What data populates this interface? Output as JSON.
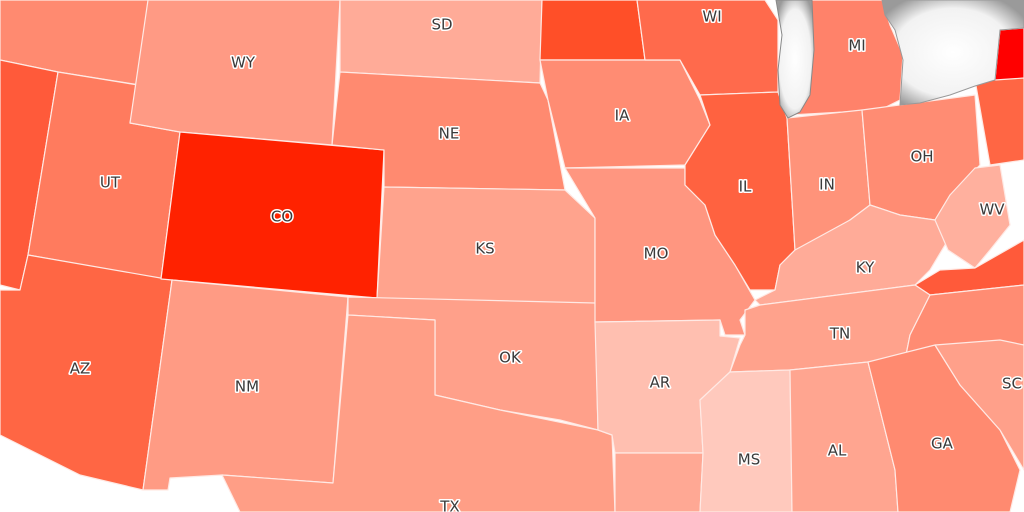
{
  "map": {
    "type": "choropleth",
    "region": "United States (central)",
    "background": "#ffffff",
    "states": [
      {
        "code": "ID",
        "label": "",
        "color": "#ff8a70"
      },
      {
        "code": "NV",
        "label": "",
        "color": "#ff5a3a"
      },
      {
        "code": "UT",
        "label": "UT",
        "color": "#ff7b5e"
      },
      {
        "code": "AZ",
        "label": "AZ",
        "color": "#ff6644"
      },
      {
        "code": "WY",
        "label": "WY",
        "color": "#ff9a84"
      },
      {
        "code": "CO",
        "label": "CO",
        "color": "#ff2200"
      },
      {
        "code": "NM",
        "label": "NM",
        "color": "#ff9b84"
      },
      {
        "code": "SD",
        "label": "SD",
        "color": "#ffab98"
      },
      {
        "code": "NE",
        "label": "NE",
        "color": "#ff8a70"
      },
      {
        "code": "KS",
        "label": "KS",
        "color": "#ffa38d"
      },
      {
        "code": "OK",
        "label": "OK",
        "color": "#ffa08a"
      },
      {
        "code": "TX",
        "label": "TX",
        "color": "#ff9e86"
      },
      {
        "code": "MN",
        "label": "",
        "color": "#ff4f28"
      },
      {
        "code": "IA",
        "label": "IA",
        "color": "#ff8c73"
      },
      {
        "code": "MO",
        "label": "MO",
        "color": "#ff9680"
      },
      {
        "code": "AR",
        "label": "AR",
        "color": "#ffbfb0"
      },
      {
        "code": "LA",
        "label": "",
        "color": "#ffa894"
      },
      {
        "code": "WI",
        "label": "WI",
        "color": "#ff6a4c"
      },
      {
        "code": "IL",
        "label": "IL",
        "color": "#ff6240"
      },
      {
        "code": "MI",
        "label": "MI",
        "color": "#ff826a"
      },
      {
        "code": "IN",
        "label": "IN",
        "color": "#ff937a"
      },
      {
        "code": "OH",
        "label": "OH",
        "color": "#ff8c73"
      },
      {
        "code": "KY",
        "label": "KY",
        "color": "#ffab98"
      },
      {
        "code": "WV",
        "label": "WV",
        "color": "#ffb09e"
      },
      {
        "code": "VA",
        "label": "",
        "color": "#ff5a3a"
      },
      {
        "code": "PA",
        "label": "",
        "color": "#ff6644"
      },
      {
        "code": "NY",
        "label": "",
        "color": "#ff0000"
      },
      {
        "code": "TN",
        "label": "TN",
        "color": "#ffa28c"
      },
      {
        "code": "NC",
        "label": "",
        "color": "#ff8c73"
      },
      {
        "code": "MS",
        "label": "MS",
        "color": "#ffc9bd"
      },
      {
        "code": "AL",
        "label": "AL",
        "color": "#ffa590"
      },
      {
        "code": "GA",
        "label": "GA",
        "color": "#ff8a70"
      },
      {
        "code": "SC",
        "label": "SC",
        "color": "#ffa08a"
      }
    ],
    "lake_color": "#c8c8c8"
  }
}
